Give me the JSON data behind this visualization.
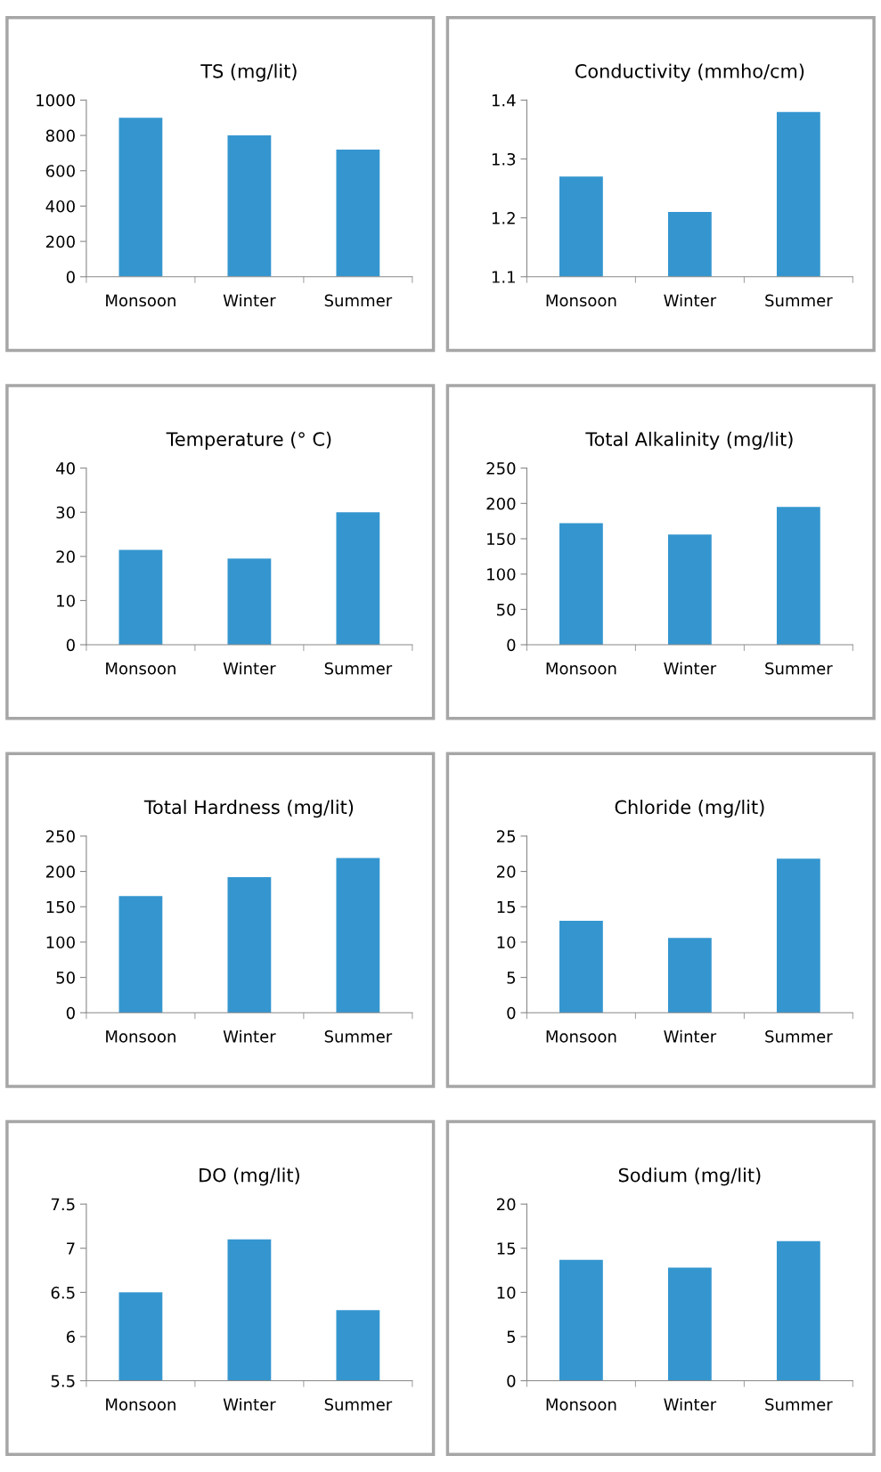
{
  "chart_data": [
    {
      "type": "bar",
      "title": "TS (mg/lit)",
      "categories": [
        "Monsoon",
        "Winter",
        "Summer"
      ],
      "values": [
        900,
        800,
        720
      ],
      "color": "#3596cf",
      "ylim": [
        0,
        1000
      ],
      "yticks": [
        0,
        200,
        400,
        600,
        800,
        1000
      ],
      "grid": false,
      "legend": false
    },
    {
      "type": "bar",
      "title": "Conductivity (mmho/cm)",
      "categories": [
        "Monsoon",
        "Winter",
        "Summer"
      ],
      "values": [
        1.27,
        1.21,
        1.38
      ],
      "color": "#3596cf",
      "ylim": [
        1.1,
        1.4
      ],
      "yticks": [
        1.1,
        1.2,
        1.3,
        1.4
      ],
      "grid": false,
      "legend": false
    },
    {
      "type": "bar",
      "title": "Temperature (° C)",
      "categories": [
        "Monsoon",
        "Winter",
        "Summer"
      ],
      "values": [
        21.5,
        19.5,
        30
      ],
      "color": "#3596cf",
      "ylim": [
        0,
        40
      ],
      "yticks": [
        0,
        10,
        20,
        30,
        40
      ],
      "grid": false,
      "legend": false
    },
    {
      "type": "bar",
      "title": "Total Alkalinity (mg/lit)",
      "categories": [
        "Monsoon",
        "Winter",
        "Summer"
      ],
      "values": [
        172,
        156,
        195
      ],
      "color": "#3596cf",
      "ylim": [
        0,
        250
      ],
      "yticks": [
        0,
        50,
        100,
        150,
        200,
        250
      ],
      "grid": false,
      "legend": false
    },
    {
      "type": "bar",
      "title": "Total Hardness (mg/lit)",
      "categories": [
        "Monsoon",
        "Winter",
        "Summer"
      ],
      "values": [
        165,
        192,
        219
      ],
      "color": "#3596cf",
      "ylim": [
        0,
        250
      ],
      "yticks": [
        0,
        50,
        100,
        150,
        200,
        250
      ],
      "grid": false,
      "legend": false
    },
    {
      "type": "bar",
      "title": "Chloride (mg/lit)",
      "categories": [
        "Monsoon",
        "Winter",
        "Summer"
      ],
      "values": [
        13,
        10.6,
        21.8
      ],
      "color": "#3596cf",
      "ylim": [
        0,
        25
      ],
      "yticks": [
        0,
        5,
        10,
        15,
        20,
        25
      ],
      "grid": false,
      "legend": false
    },
    {
      "type": "bar",
      "title": "DO (mg/lit)",
      "categories": [
        "Monsoon",
        "Winter",
        "Summer"
      ],
      "values": [
        6.5,
        7.1,
        6.3
      ],
      "color": "#3596cf",
      "ylim": [
        5.5,
        7.5
      ],
      "yticks": [
        5.5,
        6,
        6.5,
        7,
        7.5
      ],
      "grid": false,
      "legend": false
    },
    {
      "type": "bar",
      "title": "Sodium (mg/lit)",
      "categories": [
        "Monsoon",
        "Winter",
        "Summer"
      ],
      "values": [
        13.7,
        12.8,
        15.8
      ],
      "color": "#3596cf",
      "ylim": [
        0,
        20
      ],
      "yticks": [
        0,
        5,
        10,
        15,
        20
      ],
      "grid": false,
      "legend": false
    }
  ]
}
